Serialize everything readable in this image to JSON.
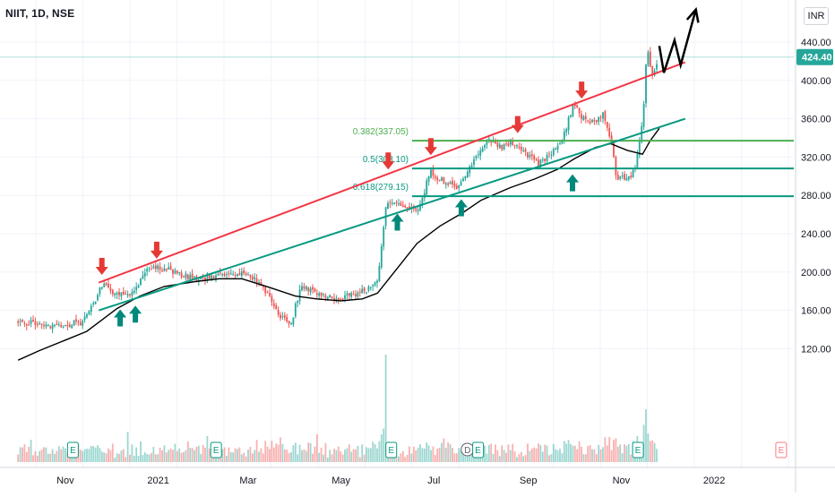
{
  "header": {
    "symbol": "NIIT, 1D, NSE",
    "currency": "INR"
  },
  "chart_data": {
    "type": "candlestick",
    "symbol": "NIIT",
    "interval": "1D",
    "exchange": "NSE",
    "last_price": "424.40",
    "y_ticks": [
      "440.00",
      "400.00",
      "360.00",
      "320.00",
      "280.00",
      "240.00",
      "200.00",
      "160.00",
      "120.00"
    ],
    "x_ticks": [
      "Nov",
      "2021",
      "Mar",
      "May",
      "Jul",
      "Sep",
      "Nov",
      "2022"
    ],
    "ylim": [
      100,
      460
    ],
    "fib_levels": [
      {
        "label": "0.382(337.05)",
        "value": 337.05,
        "color": "#4caf50"
      },
      {
        "label": "0.5(308.10)",
        "value": 308.1,
        "color": "#089981"
      },
      {
        "label": "0.618(279.15)",
        "value": 279.15,
        "color": "#089981"
      }
    ],
    "trendlines": [
      {
        "name": "resistance",
        "color": "#f23645",
        "from": [
          "2020-11-23",
          189
        ],
        "to": [
          "2021-12-13",
          419
        ]
      },
      {
        "name": "support",
        "color": "#089981",
        "from": [
          "2020-11-23",
          160
        ],
        "to": [
          "2021-12-13",
          360
        ]
      }
    ],
    "projection": {
      "color": "#000000",
      "points": [
        [
          "2021-11-26",
          436
        ],
        [
          "2021-11-29",
          408
        ],
        [
          "2021-12-06",
          442
        ],
        [
          "2021-12-10",
          416
        ],
        [
          "2021-12-20",
          474
        ]
      ]
    },
    "close_path": [
      [
        "2020-10-01",
        147
      ],
      [
        "2020-10-15",
        146
      ],
      [
        "2020-11-01",
        144
      ],
      [
        "2020-11-12",
        148
      ],
      [
        "2020-11-20",
        170
      ],
      [
        "2020-11-26",
        187
      ],
      [
        "2020-12-04",
        178
      ],
      [
        "2020-12-10",
        176
      ],
      [
        "2020-12-16",
        180
      ],
      [
        "2020-12-22",
        198
      ],
      [
        "2020-12-31",
        206
      ],
      [
        "2021-01-12",
        200
      ],
      [
        "2021-01-25",
        193
      ],
      [
        "2021-02-05",
        196
      ],
      [
        "2021-02-18",
        200
      ],
      [
        "2021-03-02",
        197
      ],
      [
        "2021-03-10",
        188
      ],
      [
        "2021-03-17",
        166
      ],
      [
        "2021-03-24",
        150
      ],
      [
        "2021-03-29",
        145
      ],
      [
        "2021-04-05",
        187
      ],
      [
        "2021-04-15",
        177
      ],
      [
        "2021-04-28",
        172
      ],
      [
        "2021-05-10",
        177
      ],
      [
        "2021-05-20",
        184
      ],
      [
        "2021-05-25",
        188
      ],
      [
        "2021-05-31",
        275
      ],
      [
        "2021-06-10",
        270
      ],
      [
        "2021-06-20",
        263
      ],
      [
        "2021-06-29",
        305
      ],
      [
        "2021-07-05",
        296
      ],
      [
        "2021-07-15",
        288
      ],
      [
        "2021-07-25",
        310
      ],
      [
        "2021-08-05",
        340
      ],
      [
        "2021-08-15",
        330
      ],
      [
        "2021-08-20",
        336
      ],
      [
        "2021-08-30",
        322
      ],
      [
        "2021-09-08",
        313
      ],
      [
        "2021-09-15",
        322
      ],
      [
        "2021-09-23",
        338
      ],
      [
        "2021-09-28",
        362
      ],
      [
        "2021-10-01",
        375
      ],
      [
        "2021-10-08",
        358
      ],
      [
        "2021-10-15",
        356
      ],
      [
        "2021-10-20",
        364
      ],
      [
        "2021-10-25",
        340
      ],
      [
        "2021-10-29",
        298
      ],
      [
        "2021-11-05",
        298
      ],
      [
        "2021-11-10",
        306
      ],
      [
        "2021-11-15",
        358
      ],
      [
        "2021-11-18",
        432
      ],
      [
        "2021-11-22",
        400
      ],
      [
        "2021-11-25",
        424
      ]
    ],
    "moving_average": [
      [
        "2020-10-01",
        108
      ],
      [
        "2020-10-15",
        118
      ],
      [
        "2020-11-01",
        129
      ],
      [
        "2020-11-15",
        138
      ],
      [
        "2020-11-25",
        150
      ],
      [
        "2020-12-05",
        162
      ],
      [
        "2020-12-20",
        175
      ],
      [
        "2021-01-05",
        185
      ],
      [
        "2021-01-25",
        190
      ],
      [
        "2021-02-10",
        193
      ],
      [
        "2021-02-25",
        193
      ],
      [
        "2021-03-15",
        184
      ],
      [
        "2021-04-01",
        175
      ],
      [
        "2021-04-15",
        172
      ],
      [
        "2021-05-01",
        170
      ],
      [
        "2021-05-15",
        172
      ],
      [
        "2021-05-25",
        178
      ],
      [
        "2021-06-05",
        200
      ],
      [
        "2021-06-20",
        230
      ],
      [
        "2021-07-05",
        248
      ],
      [
        "2021-07-20",
        262
      ],
      [
        "2021-08-01",
        275
      ],
      [
        "2021-08-20",
        288
      ],
      [
        "2021-09-05",
        297
      ],
      [
        "2021-09-20",
        307
      ],
      [
        "2021-10-01",
        318
      ],
      [
        "2021-10-15",
        330
      ],
      [
        "2021-10-25",
        334
      ],
      [
        "2021-11-05",
        327
      ],
      [
        "2021-11-15",
        323
      ],
      [
        "2021-11-20",
        337
      ],
      [
        "2021-11-26",
        350
      ]
    ],
    "resistance_touches": [
      [
        "2020-11-25",
        197
      ],
      [
        "2020-12-31",
        214
      ],
      [
        "2021-06-01",
        307
      ],
      [
        "2021-06-29",
        322
      ],
      [
        "2021-08-25",
        345
      ],
      [
        "2021-10-06",
        381
      ]
    ],
    "support_touches": [
      [
        "2020-12-07",
        161
      ],
      [
        "2020-12-17",
        165
      ],
      [
        "2021-06-07",
        261
      ],
      [
        "2021-07-19",
        276
      ],
      [
        "2021-09-30",
        302
      ]
    ],
    "earnings_markers": [
      {
        "label": "E",
        "date": "2020-11-06"
      },
      {
        "label": "E",
        "date": "2021-02-08"
      },
      {
        "label": "E",
        "date": "2021-06-03"
      },
      {
        "label": "D",
        "date": "2021-07-23"
      },
      {
        "label": "E",
        "date": "2021-07-30"
      },
      {
        "label": "E",
        "date": "2021-11-12"
      },
      {
        "label": "E",
        "date": "2022-02-14"
      }
    ]
  }
}
